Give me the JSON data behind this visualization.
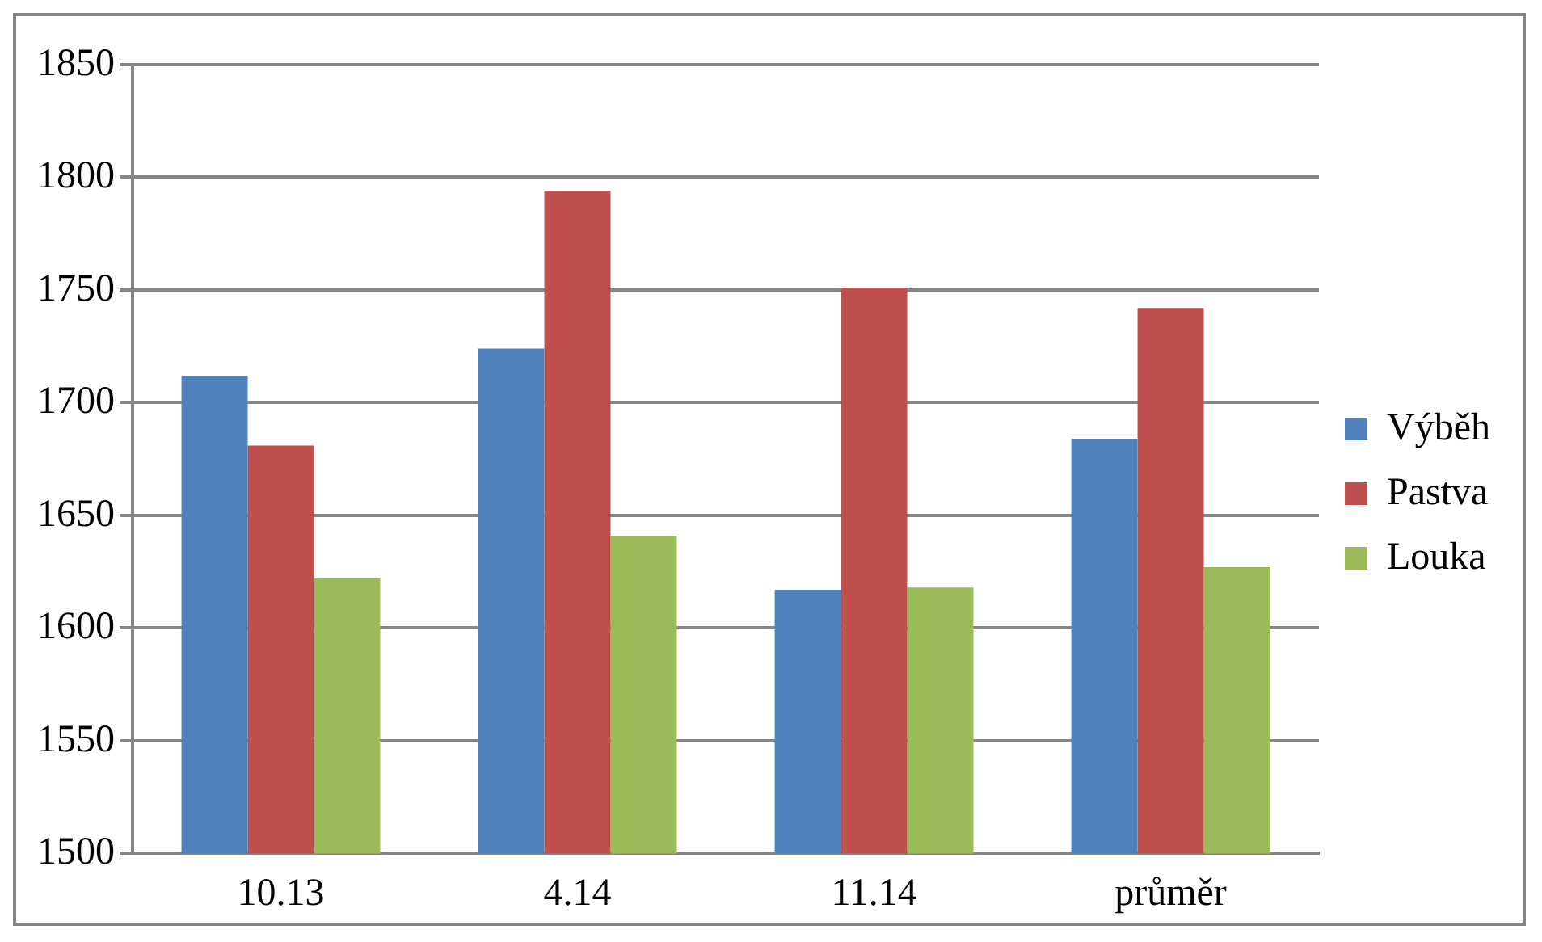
{
  "chart_data": {
    "type": "bar",
    "categories": [
      "10.13",
      "4.14",
      "11.14",
      "průměr"
    ],
    "series": [
      {
        "name": "Výběh",
        "color": "#4f81bd",
        "values": [
          1712,
          1724,
          1617,
          1684
        ]
      },
      {
        "name": "Pastva",
        "color": "#c0504d",
        "values": [
          1681,
          1794,
          1751,
          1742
        ]
      },
      {
        "name": "Louka",
        "color": "#9bbb59",
        "values": [
          1622,
          1641,
          1618,
          1627
        ]
      }
    ],
    "ylim": [
      1500,
      1850
    ],
    "yticks": [
      1500,
      1550,
      1600,
      1650,
      1700,
      1750,
      1800,
      1850
    ],
    "grid": "y",
    "legend": "right"
  }
}
